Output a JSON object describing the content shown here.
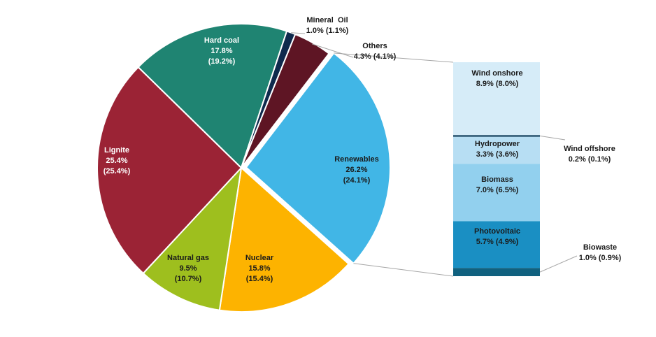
{
  "chart_data": {
    "type": "pie",
    "title": "",
    "slices": [
      {
        "key": "renewables",
        "name": "Renewables",
        "value": 26.2,
        "value_text": "26.2%",
        "prev_text": "(24.1%)",
        "color": "#41b6e6"
      },
      {
        "key": "nuclear",
        "name": "Nuclear",
        "value": 15.8,
        "value_text": "15.8%",
        "prev_text": "(15.4%)",
        "color": "#fdb300"
      },
      {
        "key": "natural_gas",
        "name": "Natural gas",
        "value": 9.5,
        "value_text": "9.5%",
        "prev_text": "(10.7%)",
        "color": "#9ebf1e"
      },
      {
        "key": "lignite",
        "name": "Lignite",
        "value": 25.4,
        "value_text": "25.4%",
        "prev_text": "(25.4%)",
        "color": "#9b2335"
      },
      {
        "key": "hard_coal",
        "name": "Hard coal",
        "value": 17.8,
        "value_text": "17.8%",
        "prev_text": "(19.2%)",
        "color": "#1f8472"
      },
      {
        "key": "mineral_oil",
        "name": "Mineral  Oil",
        "value": 1.0,
        "value_text": "1.0% (1.1%)",
        "prev_text": "",
        "color": "#0e2a4d"
      },
      {
        "key": "others",
        "name": "Others",
        "value": 4.3,
        "value_text": "4.3% (4.1%)",
        "prev_text": "",
        "color": "#5e1524"
      }
    ],
    "breakdown": {
      "of": "Renewables",
      "items": [
        {
          "key": "wind_onshore",
          "name": "Wind onshore",
          "value": 8.9,
          "value_text": "8.9% (8.0%)",
          "color": "#d6ecf8"
        },
        {
          "key": "wind_offshore",
          "name": "Wind offshore",
          "value": 0.2,
          "value_text": "0.2% (0.1%)",
          "color": "#0e3e5c"
        },
        {
          "key": "hydropower",
          "name": "Hydropower",
          "value": 3.3,
          "value_text": "3.3% (3.6%)",
          "color": "#b7def3"
        },
        {
          "key": "biomass",
          "name": "Biomass",
          "value": 7.0,
          "value_text": "7.0% (6.5%)",
          "color": "#92d0ee"
        },
        {
          "key": "photovoltaic",
          "name": "Photovoltaic",
          "value": 5.7,
          "value_text": "5.7% (4.9%)",
          "color": "#1a8fc3"
        },
        {
          "key": "biowaste",
          "name": "Biowaste",
          "value": 1.0,
          "value_text": "1.0% (0.9%)",
          "color": "#10617f"
        }
      ]
    },
    "legend": "none",
    "grid": false
  }
}
